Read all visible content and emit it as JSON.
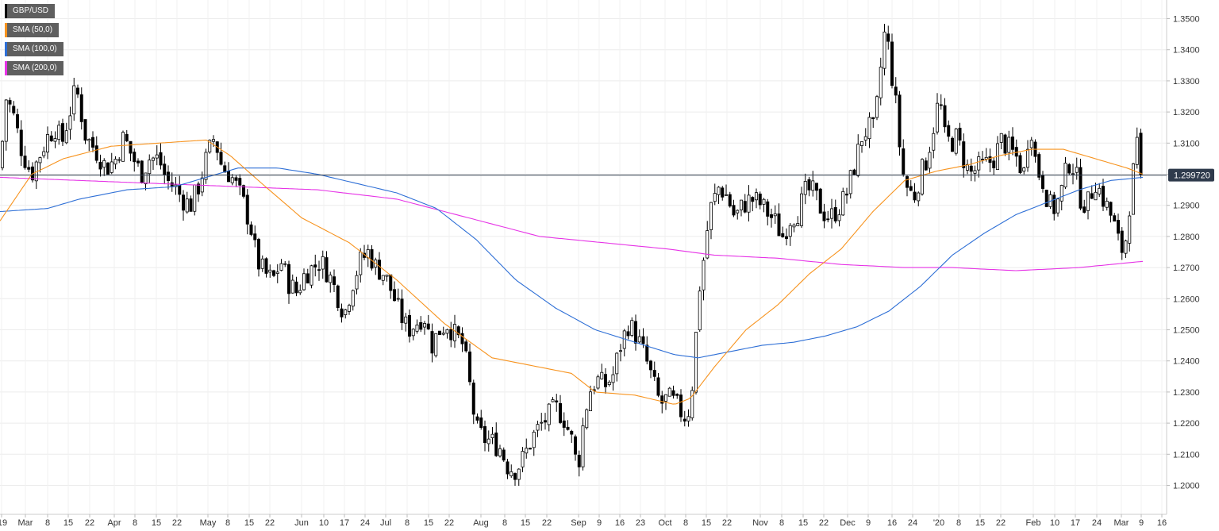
{
  "chart_data": {
    "type": "candlestick",
    "symbol": "GBP/USD",
    "last_price": "1.29972",
    "last_price_label": "1.299720",
    "ylim": [
      1.19,
      1.355
    ],
    "y_ticks": [
      "1.2000",
      "1.2100",
      "1.2200",
      "1.2300",
      "1.2400",
      "1.2500",
      "1.2600",
      "1.2700",
      "1.2800",
      "1.2900",
      "1.3000",
      "1.3100",
      "1.3200",
      "1.3300",
      "1.3400",
      "1.3500"
    ],
    "x_ticks": [
      "'19",
      "Mar",
      "8",
      "15",
      "22",
      "Apr",
      "8",
      "15",
      "22",
      "May",
      "8",
      "15",
      "22",
      "Jun",
      "10",
      "17",
      "24",
      "Jul",
      "8",
      "15",
      "22",
      "Aug",
      "8",
      "15",
      "22",
      "Sep",
      "9",
      "16",
      "23",
      "Oct",
      "8",
      "15",
      "22",
      "Nov",
      "8",
      "15",
      "22",
      "Dec",
      "9",
      "16",
      "24",
      "'20",
      "8",
      "15",
      "22",
      "Feb",
      "10",
      "17",
      "24",
      "Mar",
      "9",
      "16"
    ],
    "legend": [
      {
        "label": "GBP/USD",
        "color": "#000000"
      },
      {
        "label": "SMA (50,0)",
        "color": "#f7931e"
      },
      {
        "label": "SMA (100,0)",
        "color": "#2e6fd6"
      },
      {
        "label": "SMA (200,0)",
        "color": "#e633e6"
      }
    ],
    "grid": true,
    "close_anchors": [
      [
        0,
        1.302
      ],
      [
        8,
        1.325
      ],
      [
        18,
        1.318
      ],
      [
        28,
        1.307
      ],
      [
        40,
        1.3
      ],
      [
        48,
        1.305
      ],
      [
        60,
        1.312
      ],
      [
        70,
        1.315
      ],
      [
        78,
        1.31
      ],
      [
        88,
        1.32
      ],
      [
        96,
        1.328
      ],
      [
        108,
        1.312
      ],
      [
        120,
        1.308
      ],
      [
        134,
        1.302
      ],
      [
        146,
        1.305
      ],
      [
        156,
        1.312
      ],
      [
        166,
        1.306
      ],
      [
        178,
        1.3
      ],
      [
        188,
        1.305
      ],
      [
        200,
        1.305
      ],
      [
        210,
        1.298
      ],
      [
        220,
        1.296
      ],
      [
        230,
        1.292
      ],
      [
        240,
        1.29
      ],
      [
        250,
        1.296
      ],
      [
        260,
        1.305
      ],
      [
        270,
        1.312
      ],
      [
        280,
        1.302
      ],
      [
        290,
        1.3
      ],
      [
        300,
        1.295
      ],
      [
        308,
        1.29
      ],
      [
        316,
        1.283
      ],
      [
        324,
        1.272
      ],
      [
        334,
        1.268
      ],
      [
        344,
        1.266
      ],
      [
        354,
        1.272
      ],
      [
        364,
        1.265
      ],
      [
        374,
        1.262
      ],
      [
        384,
        1.268
      ],
      [
        394,
        1.27
      ],
      [
        404,
        1.272
      ],
      [
        414,
        1.268
      ],
      [
        424,
        1.262
      ],
      [
        434,
        1.255
      ],
      [
        444,
        1.265
      ],
      [
        454,
        1.272
      ],
      [
        464,
        1.275
      ],
      [
        474,
        1.27
      ],
      [
        484,
        1.268
      ],
      [
        494,
        1.262
      ],
      [
        504,
        1.255
      ],
      [
        514,
        1.25
      ],
      [
        524,
        1.252
      ],
      [
        534,
        1.255
      ],
      [
        544,
        1.245
      ],
      [
        554,
        1.25
      ],
      [
        564,
        1.252
      ],
      [
        574,
        1.248
      ],
      [
        584,
        1.245
      ],
      [
        592,
        1.232
      ],
      [
        600,
        1.218
      ],
      [
        610,
        1.215
      ],
      [
        620,
        1.214
      ],
      [
        630,
        1.212
      ],
      [
        640,
        1.206
      ],
      [
        650,
        1.205
      ],
      [
        660,
        1.209
      ],
      [
        670,
        1.215
      ],
      [
        680,
        1.219
      ],
      [
        690,
        1.222
      ],
      [
        700,
        1.225
      ],
      [
        710,
        1.222
      ],
      [
        720,
        1.215
      ],
      [
        728,
        1.205
      ],
      [
        734,
        1.218
      ],
      [
        742,
        1.23
      ],
      [
        752,
        1.234
      ],
      [
        762,
        1.232
      ],
      [
        772,
        1.235
      ],
      [
        782,
        1.245
      ],
      [
        792,
        1.252
      ],
      [
        802,
        1.248
      ],
      [
        812,
        1.242
      ],
      [
        822,
        1.234
      ],
      [
        832,
        1.226
      ],
      [
        842,
        1.228
      ],
      [
        852,
        1.226
      ],
      [
        862,
        1.222
      ],
      [
        870,
        1.225
      ],
      [
        876,
        1.245
      ],
      [
        882,
        1.265
      ],
      [
        888,
        1.275
      ],
      [
        894,
        1.288
      ],
      [
        900,
        1.292
      ],
      [
        906,
        1.296
      ],
      [
        916,
        1.293
      ],
      [
        926,
        1.286
      ],
      [
        936,
        1.29
      ],
      [
        946,
        1.292
      ],
      [
        956,
        1.291
      ],
      [
        966,
        1.288
      ],
      [
        976,
        1.285
      ],
      [
        986,
        1.28
      ],
      [
        996,
        1.286
      ],
      [
        1006,
        1.288
      ],
      [
        1016,
        1.295
      ],
      [
        1026,
        1.294
      ],
      [
        1036,
        1.288
      ],
      [
        1046,
        1.286
      ],
      [
        1056,
        1.289
      ],
      [
        1066,
        1.293
      ],
      [
        1076,
        1.302
      ],
      [
        1086,
        1.312
      ],
      [
        1094,
        1.315
      ],
      [
        1102,
        1.314
      ],
      [
        1110,
        1.335
      ],
      [
        1116,
        1.348
      ],
      [
        1122,
        1.335
      ],
      [
        1130,
        1.32
      ],
      [
        1136,
        1.302
      ],
      [
        1144,
        1.295
      ],
      [
        1152,
        1.293
      ],
      [
        1160,
        1.3
      ],
      [
        1168,
        1.305
      ],
      [
        1176,
        1.315
      ],
      [
        1184,
        1.325
      ],
      [
        1190,
        1.312
      ],
      [
        1198,
        1.31
      ],
      [
        1206,
        1.312
      ],
      [
        1214,
        1.305
      ],
      [
        1222,
        1.3
      ],
      [
        1232,
        1.302
      ],
      [
        1242,
        1.303
      ],
      [
        1252,
        1.305
      ],
      [
        1262,
        1.311
      ],
      [
        1272,
        1.308
      ],
      [
        1282,
        1.305
      ],
      [
        1290,
        1.3
      ],
      [
        1298,
        1.318
      ],
      [
        1306,
        1.302
      ],
      [
        1314,
        1.298
      ],
      [
        1322,
        1.29
      ],
      [
        1330,
        1.289
      ],
      [
        1338,
        1.295
      ],
      [
        1346,
        1.304
      ],
      [
        1354,
        1.302
      ],
      [
        1362,
        1.292
      ],
      [
        1370,
        1.29
      ],
      [
        1380,
        1.298
      ],
      [
        1390,
        1.292
      ],
      [
        1398,
        1.288
      ],
      [
        1406,
        1.282
      ],
      [
        1412,
        1.275
      ],
      [
        1418,
        1.278
      ],
      [
        1424,
        1.292
      ],
      [
        1430,
        1.305
      ],
      [
        1436,
        1.312
      ],
      [
        1440,
        1.29972
      ]
    ],
    "sma50_anchors": [
      [
        0,
        1.285
      ],
      [
        40,
        1.3
      ],
      [
        80,
        1.305
      ],
      [
        140,
        1.309
      ],
      [
        200,
        1.31
      ],
      [
        260,
        1.311
      ],
      [
        290,
        1.306
      ],
      [
        330,
        1.297
      ],
      [
        380,
        1.286
      ],
      [
        440,
        1.278
      ],
      [
        500,
        1.266
      ],
      [
        560,
        1.252
      ],
      [
        620,
        1.241
      ],
      [
        680,
        1.238
      ],
      [
        720,
        1.236
      ],
      [
        750,
        1.23
      ],
      [
        800,
        1.229
      ],
      [
        850,
        1.226
      ],
      [
        870,
        1.228
      ],
      [
        900,
        1.238
      ],
      [
        940,
        1.25
      ],
      [
        980,
        1.258
      ],
      [
        1020,
        1.268
      ],
      [
        1060,
        1.276
      ],
      [
        1100,
        1.288
      ],
      [
        1140,
        1.298
      ],
      [
        1180,
        1.301
      ],
      [
        1220,
        1.303
      ],
      [
        1260,
        1.306
      ],
      [
        1300,
        1.308
      ],
      [
        1340,
        1.308
      ],
      [
        1380,
        1.305
      ],
      [
        1420,
        1.302
      ],
      [
        1440,
        1.3
      ]
    ],
    "sma100_anchors": [
      [
        0,
        1.288
      ],
      [
        60,
        1.289
      ],
      [
        100,
        1.292
      ],
      [
        160,
        1.295
      ],
      [
        220,
        1.296
      ],
      [
        260,
        1.299
      ],
      [
        300,
        1.302
      ],
      [
        350,
        1.302
      ],
      [
        400,
        1.3
      ],
      [
        450,
        1.297
      ],
      [
        500,
        1.294
      ],
      [
        550,
        1.289
      ],
      [
        600,
        1.279
      ],
      [
        650,
        1.266
      ],
      [
        700,
        1.257
      ],
      [
        750,
        1.25
      ],
      [
        800,
        1.246
      ],
      [
        850,
        1.242
      ],
      [
        880,
        1.241
      ],
      [
        920,
        1.243
      ],
      [
        960,
        1.245
      ],
      [
        1000,
        1.246
      ],
      [
        1040,
        1.248
      ],
      [
        1080,
        1.251
      ],
      [
        1120,
        1.256
      ],
      [
        1160,
        1.264
      ],
      [
        1200,
        1.274
      ],
      [
        1240,
        1.281
      ],
      [
        1280,
        1.287
      ],
      [
        1320,
        1.291
      ],
      [
        1360,
        1.295
      ],
      [
        1400,
        1.298
      ],
      [
        1440,
        1.299
      ]
    ],
    "sma200_anchors": [
      [
        0,
        1.299
      ],
      [
        100,
        1.298
      ],
      [
        200,
        1.297
      ],
      [
        300,
        1.296
      ],
      [
        400,
        1.295
      ],
      [
        500,
        1.292
      ],
      [
        560,
        1.288
      ],
      [
        620,
        1.284
      ],
      [
        680,
        1.28
      ],
      [
        760,
        1.278
      ],
      [
        840,
        1.276
      ],
      [
        900,
        1.274
      ],
      [
        980,
        1.273
      ],
      [
        1060,
        1.271
      ],
      [
        1140,
        1.27
      ],
      [
        1200,
        1.27
      ],
      [
        1280,
        1.269
      ],
      [
        1360,
        1.27
      ],
      [
        1440,
        1.272
      ]
    ]
  }
}
